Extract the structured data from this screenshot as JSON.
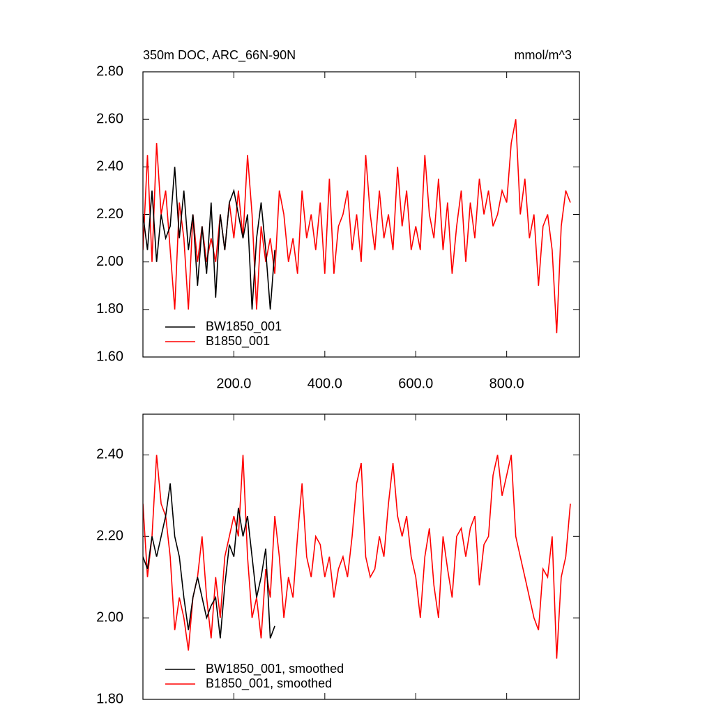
{
  "chart_data": [
    {
      "type": "line",
      "title": "350m DOC, ARC_66N-90N",
      "units": "mmol/m^3",
      "xlim": [
        0,
        960
      ],
      "ylim": [
        1.6,
        2.8
      ],
      "xticks": [
        {
          "value": 200,
          "label": "200.0"
        },
        {
          "value": 400,
          "label": "400.0"
        },
        {
          "value": 600,
          "label": "600.0"
        },
        {
          "value": 800,
          "label": "800.0"
        }
      ],
      "yticks": [
        {
          "value": 1.6,
          "label": "1.60"
        },
        {
          "value": 1.8,
          "label": "1.80"
        },
        {
          "value": 2.0,
          "label": "2.00"
        },
        {
          "value": 2.2,
          "label": "2.20"
        },
        {
          "value": 2.4,
          "label": "2.40"
        },
        {
          "value": 2.6,
          "label": "2.60"
        },
        {
          "value": 2.8,
          "label": "2.80"
        }
      ],
      "xtick_labels": true,
      "legend": "lower left",
      "series": [
        {
          "name": "BW1850_001",
          "color": "#000000",
          "x": [
            0,
            10,
            20,
            30,
            40,
            50,
            60,
            70,
            80,
            90,
            100,
            110,
            120,
            130,
            140,
            150,
            160,
            170,
            180,
            190,
            200,
            210,
            220,
            230,
            240,
            250,
            260,
            270,
            280,
            290
          ],
          "values": [
            2.2,
            2.05,
            2.3,
            2.0,
            2.2,
            2.1,
            2.15,
            2.4,
            2.1,
            2.3,
            2.05,
            2.2,
            1.9,
            2.15,
            1.95,
            2.25,
            1.85,
            2.2,
            2.05,
            2.25,
            2.3,
            2.2,
            2.1,
            2.2,
            1.8,
            2.1,
            2.25,
            2.05,
            1.8,
            2.05
          ]
        },
        {
          "name": "B1850_001",
          "color": "#ff0000",
          "x": [
            0,
            10,
            20,
            30,
            40,
            50,
            60,
            70,
            80,
            90,
            100,
            110,
            120,
            130,
            140,
            150,
            160,
            170,
            180,
            190,
            200,
            210,
            220,
            230,
            240,
            250,
            260,
            270,
            280,
            290,
            300,
            310,
            320,
            330,
            340,
            350,
            360,
            370,
            380,
            390,
            400,
            410,
            420,
            430,
            440,
            450,
            460,
            470,
            480,
            490,
            500,
            510,
            520,
            530,
            540,
            550,
            560,
            570,
            580,
            590,
            600,
            610,
            620,
            630,
            640,
            650,
            660,
            670,
            680,
            690,
            700,
            710,
            720,
            730,
            740,
            750,
            760,
            770,
            780,
            790,
            800,
            810,
            820,
            830,
            840,
            850,
            860,
            870,
            880,
            890,
            900,
            910,
            920,
            930,
            940
          ],
          "values": [
            2.05,
            2.45,
            2.0,
            2.5,
            2.2,
            2.3,
            2.05,
            1.8,
            2.25,
            2.1,
            1.8,
            2.2,
            2.0,
            2.15,
            2.0,
            2.1,
            2.0,
            2.2,
            2.05,
            2.25,
            2.1,
            2.3,
            2.1,
            2.45,
            2.2,
            1.8,
            2.15,
            2.0,
            2.1,
            1.95,
            2.3,
            2.2,
            2.0,
            2.1,
            1.95,
            2.3,
            2.1,
            2.2,
            2.05,
            2.25,
            1.95,
            2.35,
            1.95,
            2.15,
            2.2,
            2.3,
            2.05,
            2.2,
            2.0,
            2.45,
            2.2,
            2.05,
            2.3,
            2.1,
            2.2,
            2.05,
            2.4,
            2.15,
            2.3,
            2.05,
            2.15,
            2.05,
            2.45,
            2.2,
            2.1,
            2.35,
            2.05,
            2.25,
            1.95,
            2.15,
            2.3,
            2.0,
            2.25,
            2.1,
            2.35,
            2.2,
            2.3,
            2.15,
            2.2,
            2.3,
            2.25,
            2.5,
            2.6,
            2.2,
            2.35,
            2.1,
            2.2,
            1.9,
            2.15,
            2.2,
            2.05,
            1.7,
            2.15,
            2.3,
            2.25
          ]
        }
      ]
    },
    {
      "type": "line",
      "xlim": [
        0,
        960
      ],
      "ylim": [
        1.8,
        2.5
      ],
      "xticks": [
        200,
        400,
        600,
        800
      ],
      "yticks": [
        {
          "value": 1.8,
          "label": "1.80"
        },
        {
          "value": 2.0,
          "label": "2.00"
        },
        {
          "value": 2.2,
          "label": "2.20"
        },
        {
          "value": 2.4,
          "label": "2.40"
        }
      ],
      "xtick_labels": false,
      "legend": "lower left",
      "series": [
        {
          "name": "BW1850_001, smoothed",
          "color": "#000000",
          "x": [
            0,
            10,
            20,
            30,
            40,
            50,
            60,
            70,
            80,
            90,
            100,
            110,
            120,
            130,
            140,
            150,
            160,
            170,
            180,
            190,
            200,
            210,
            220,
            230,
            240,
            250,
            260,
            270,
            280,
            290
          ],
          "values": [
            2.15,
            2.12,
            2.2,
            2.15,
            2.2,
            2.25,
            2.33,
            2.2,
            2.15,
            2.05,
            1.97,
            2.05,
            2.1,
            2.05,
            2.0,
            2.03,
            2.05,
            1.95,
            2.08,
            2.18,
            2.15,
            2.27,
            2.2,
            2.25,
            2.15,
            2.05,
            2.1,
            2.17,
            1.95,
            1.98
          ]
        },
        {
          "name": "B1850_001, smoothed",
          "color": "#ff0000",
          "x": [
            0,
            10,
            20,
            30,
            40,
            50,
            60,
            70,
            80,
            90,
            100,
            110,
            120,
            130,
            140,
            150,
            160,
            170,
            180,
            190,
            200,
            210,
            220,
            230,
            240,
            250,
            260,
            270,
            280,
            290,
            300,
            310,
            320,
            330,
            340,
            350,
            360,
            370,
            380,
            390,
            400,
            410,
            420,
            430,
            440,
            450,
            460,
            470,
            480,
            490,
            500,
            510,
            520,
            530,
            540,
            550,
            560,
            570,
            580,
            590,
            600,
            610,
            620,
            630,
            640,
            650,
            660,
            670,
            680,
            690,
            700,
            710,
            720,
            730,
            740,
            750,
            760,
            770,
            780,
            790,
            800,
            810,
            820,
            830,
            840,
            850,
            860,
            870,
            880,
            890,
            900,
            910,
            920,
            930,
            940
          ],
          "values": [
            2.28,
            2.1,
            2.2,
            2.4,
            2.28,
            2.25,
            2.15,
            1.97,
            2.05,
            2.0,
            1.92,
            2.05,
            2.1,
            2.2,
            2.05,
            1.95,
            2.1,
            2.0,
            2.15,
            2.2,
            2.25,
            2.2,
            2.4,
            2.15,
            2.0,
            2.05,
            1.95,
            2.12,
            2.05,
            2.25,
            2.15,
            2.0,
            2.1,
            2.05,
            2.2,
            2.33,
            2.15,
            2.1,
            2.2,
            2.18,
            2.1,
            2.15,
            2.05,
            2.12,
            2.15,
            2.1,
            2.2,
            2.33,
            2.38,
            2.15,
            2.1,
            2.12,
            2.2,
            2.15,
            2.28,
            2.38,
            2.25,
            2.2,
            2.25,
            2.15,
            2.1,
            2.0,
            2.15,
            2.22,
            2.08,
            2.0,
            2.2,
            2.12,
            2.05,
            2.2,
            2.22,
            2.15,
            2.22,
            2.25,
            2.08,
            2.18,
            2.2,
            2.35,
            2.4,
            2.3,
            2.35,
            2.4,
            2.2,
            2.15,
            2.1,
            2.05,
            2.0,
            1.97,
            2.12,
            2.1,
            2.2,
            1.9,
            2.1,
            2.15,
            2.28
          ]
        }
      ]
    }
  ]
}
